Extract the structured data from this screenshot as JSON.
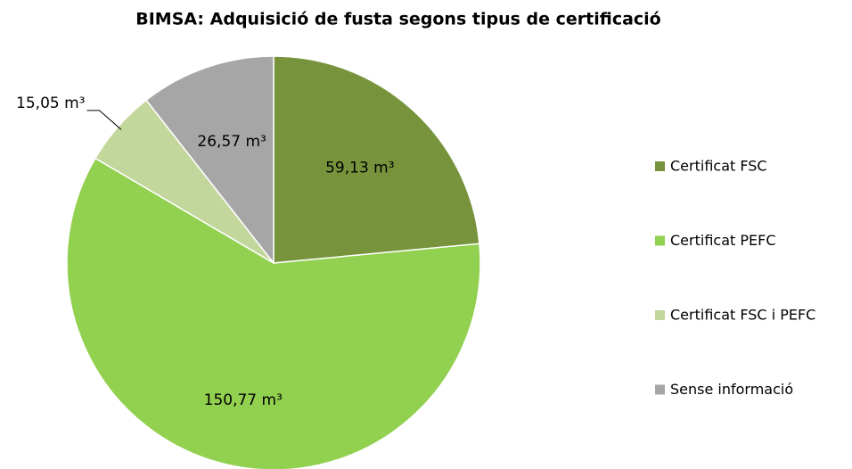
{
  "chart_data": {
    "type": "pie",
    "title": "BIMSA: Adquisició de fusta segons tipus de certificació",
    "categories": [
      "Certificat FSC",
      "Certificat PEFC",
      "Certificat FSC i PEFC",
      "Sense informació"
    ],
    "values": [
      59.13,
      150.77,
      15.05,
      26.57
    ],
    "value_labels": [
      "59,13 m³",
      "150,77 m³",
      "15,05 m³",
      "26,57 m³"
    ],
    "colors": [
      "#77933c",
      "#92d050",
      "#c3d69b",
      "#a6a6a6"
    ],
    "legend": "right"
  }
}
